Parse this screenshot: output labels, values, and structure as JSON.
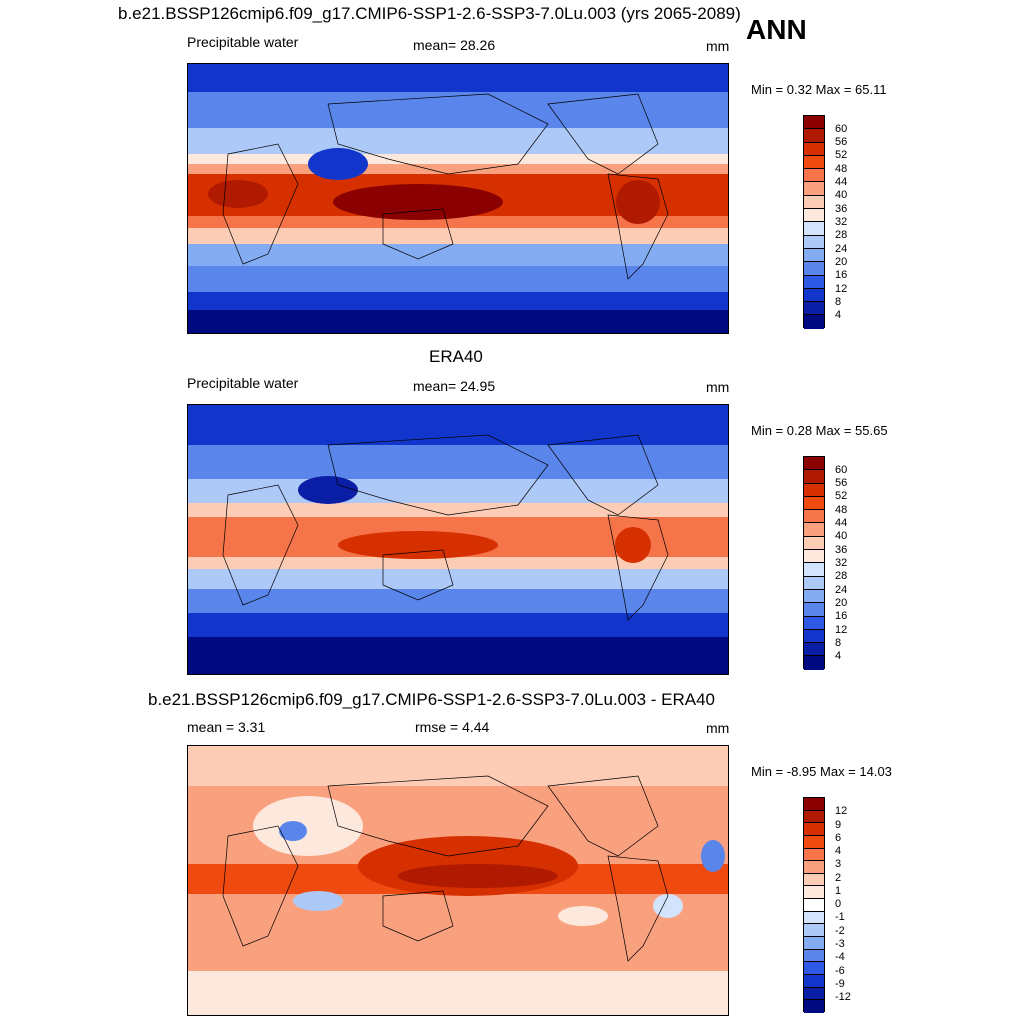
{
  "season": "ANN",
  "panels": [
    {
      "title": "b.e21.BSSP126cmip6.f09_g17.CMIP6-SSP1-2.6-SSP3-7.0Lu.003 (yrs 2065-2089)",
      "left": "Precipitable water",
      "center": "mean=  28.26",
      "units": "mm",
      "minmax": "Min =   0.32 Max =  65.11",
      "ticks": [
        "60",
        "56",
        "52",
        "48",
        "44",
        "40",
        "36",
        "32",
        "28",
        "24",
        "20",
        "16",
        "12",
        "8",
        "4"
      ]
    },
    {
      "title": "ERA40",
      "left": "Precipitable water",
      "center": "mean=  24.95",
      "units": "mm",
      "minmax": "Min =   0.28 Max =  55.65",
      "ticks": [
        "60",
        "56",
        "52",
        "48",
        "44",
        "40",
        "36",
        "32",
        "28",
        "24",
        "20",
        "16",
        "12",
        "8",
        "4"
      ]
    },
    {
      "title": "b.e21.BSSP126cmip6.f09_g17.CMIP6-SSP1-2.6-SSP3-7.0Lu.003 - ERA40",
      "left": "mean =   3.31",
      "center": "rmse =   4.44",
      "units": "mm",
      "minmax": "Min =  -8.95 Max =  14.03",
      "ticks": [
        "12",
        "9",
        "6",
        "4",
        "3",
        "2",
        "1",
        "0",
        "-1",
        "-2",
        "-3",
        "-4",
        "-6",
        "-9",
        "-12"
      ]
    }
  ],
  "colors": {
    "abs_scale": [
      "#8b0000",
      "#b01a00",
      "#d63000",
      "#ef4a10",
      "#f6744a",
      "#f9a07e",
      "#fcccb5",
      "#fde8de",
      "#d3e3fb",
      "#adc9f7",
      "#84acf2",
      "#5a86ec",
      "#2d59e4",
      "#1236cc",
      "#0b1ea6",
      "#000a80"
    ],
    "diff_scale": [
      "#8b0000",
      "#b01a00",
      "#d63000",
      "#ef4a10",
      "#f6744a",
      "#f9a07e",
      "#fcccb5",
      "#fde8de",
      "#ffffff",
      "#d3e3fb",
      "#adc9f7",
      "#84acf2",
      "#5a86ec",
      "#2d59e4",
      "#1236cc",
      "#0b1ea6",
      "#000a80"
    ]
  }
}
